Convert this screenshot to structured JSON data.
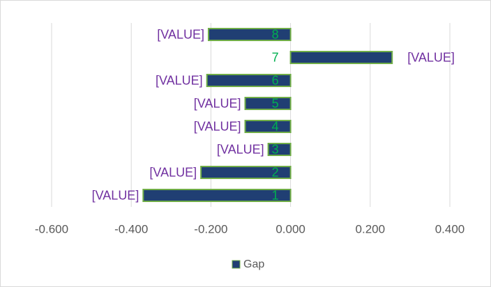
{
  "chart_data": {
    "type": "bar",
    "orientation": "horizontal",
    "categories": [
      "1",
      "2",
      "3",
      "4",
      "5",
      "6",
      "7",
      "8"
    ],
    "category_color": "#00b050",
    "series": [
      {
        "name": "Gap",
        "color": "#203f73",
        "edge_color": "#70ad47",
        "values": [
          -0.37,
          -0.225,
          -0.056,
          -0.114,
          -0.114,
          -0.21,
          0.255,
          -0.206
        ],
        "value_labels": [
          "[VALUE]",
          "[VALUE]",
          "[VALUE]",
          "[VALUE]",
          "[VALUE]",
          "[VALUE]",
          "[VALUE]",
          "[VALUE]"
        ],
        "label_color": "#7030a0"
      }
    ],
    "xlim": [
      -0.6,
      0.4
    ],
    "xticks": [
      {
        "value": -0.6,
        "label": "-0.600"
      },
      {
        "value": -0.4,
        "label": "-0.400"
      },
      {
        "value": -0.2,
        "label": "-0.200"
      },
      {
        "value": 0,
        "label": "0.000"
      },
      {
        "value": 0.2,
        "label": "0.200"
      },
      {
        "value": 0.4,
        "label": "0.400"
      }
    ],
    "grid": true,
    "legend": "bottom"
  }
}
